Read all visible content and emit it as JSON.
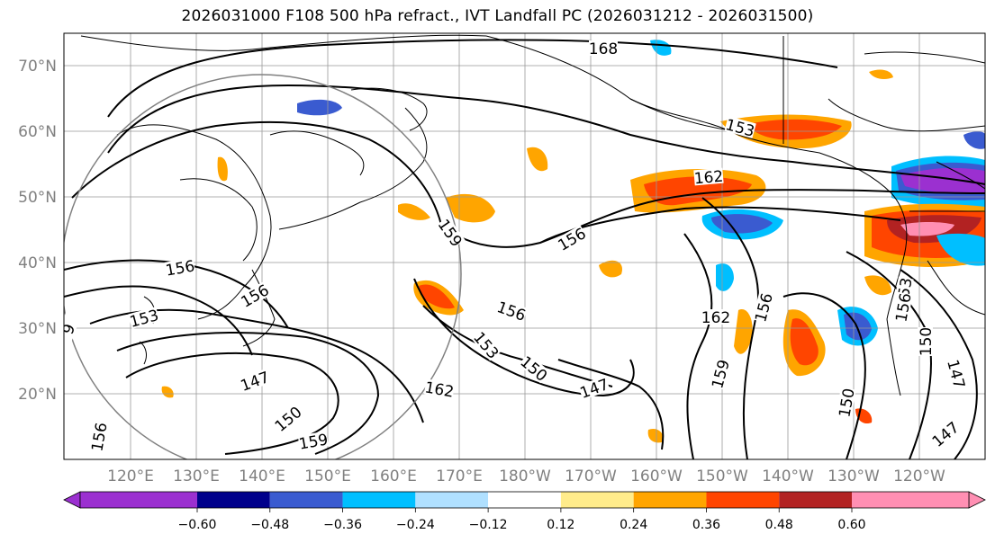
{
  "title": "2026031000 F108 500 hPa refract., IVT Landfall PC (2026031212 - 2026031500)",
  "lat_labels": [
    "70°N",
    "60°N",
    "50°N",
    "40°N",
    "30°N",
    "20°N"
  ],
  "lon_labels": [
    "120°E",
    "130°E",
    "140°E",
    "150°E",
    "160°E",
    "170°E",
    "180°W",
    "170°W",
    "160°W",
    "150°W",
    "140°W",
    "130°W",
    "120°W"
  ],
  "contour_labels": [
    "168",
    "153",
    "162",
    "156",
    "159",
    "156",
    "156",
    "153",
    "156",
    "9",
    "147",
    "150",
    "159",
    "156",
    "153",
    "150",
    "147",
    "162",
    "162",
    "159",
    "156",
    "150",
    "150",
    "147",
    "147",
    "153",
    "156"
  ],
  "colorbar": {
    "ticks": [
      "−0.60",
      "−0.48",
      "−0.36",
      "−0.24",
      "−0.12",
      "0.12",
      "0.24",
      "0.36",
      "0.48",
      "0.60"
    ],
    "colors": [
      "#9b30d0",
      "#00008b",
      "#3a5bd0",
      "#00bfff",
      "#b0e0ff",
      "#ffffff",
      "#ffec8b",
      "#ffa500",
      "#ff4500",
      "#b22222",
      "#ff8fb3"
    ]
  },
  "colors": {
    "grid": "#999999",
    "coast": "#000000",
    "contour": "#000000",
    "circle": "#808080"
  }
}
